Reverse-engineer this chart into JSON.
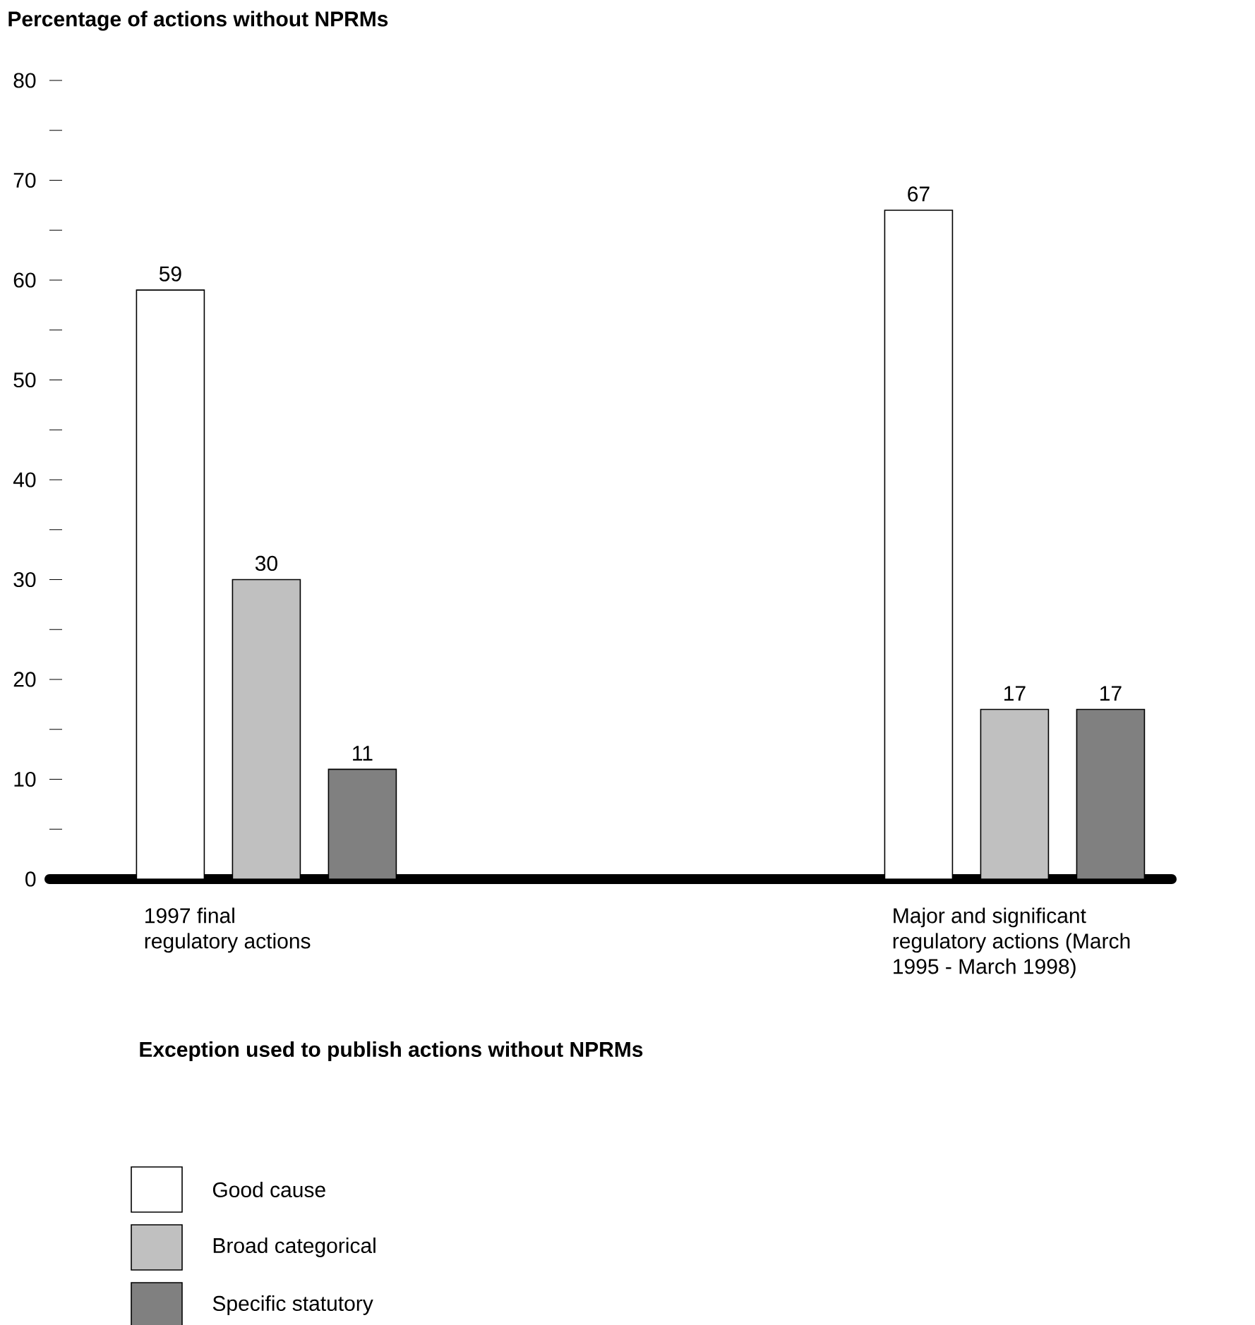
{
  "chart_data": {
    "type": "bar",
    "ylabel": "Percentage of actions without NPRMs",
    "legend_title": "Exception used to publish actions without NPRMs",
    "categories": [
      "1997 final regulatory actions",
      "Major and significant regulatory actions (March 1995 - March 1998)"
    ],
    "series": [
      {
        "name": "Good cause",
        "color": "#ffffff",
        "values": [
          59,
          67
        ]
      },
      {
        "name": "Broad categorical",
        "color": "#c0c0c0",
        "values": [
          30,
          17
        ]
      },
      {
        "name": "Specific statutory",
        "color": "#808080",
        "values": [
          11,
          17
        ]
      }
    ],
    "ylim": [
      0,
      80
    ],
    "yticks": [
      0,
      {
        "value": 5,
        "label": null
      },
      10,
      {
        "value": 15,
        "label": null
      },
      20,
      {
        "value": 25,
        "label": null
      },
      30,
      {
        "value": 35,
        "label": null
      },
      40,
      {
        "value": 45,
        "label": null
      },
      50,
      {
        "value": 55,
        "label": null
      },
      60,
      {
        "value": 65,
        "label": null
      },
      70,
      {
        "value": 75,
        "label": null
      },
      80
    ],
    "data_labels": true,
    "legend": "bottom",
    "grid": false
  }
}
